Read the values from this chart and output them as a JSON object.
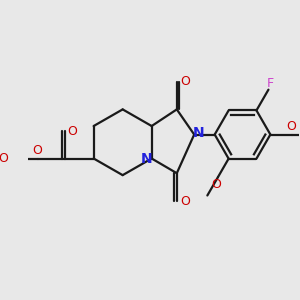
{
  "bg_color": "#e8e8e8",
  "bond_color": "#1a1a1a",
  "N_color": "#2222dd",
  "O_color": "#cc0000",
  "F_color": "#cc44cc",
  "lw": 1.6,
  "doff": 0.06,
  "figsize": [
    3.0,
    3.0
  ],
  "dpi": 100,
  "xlim": [
    -2.2,
    4.8
  ],
  "ylim": [
    -2.6,
    2.2
  ]
}
